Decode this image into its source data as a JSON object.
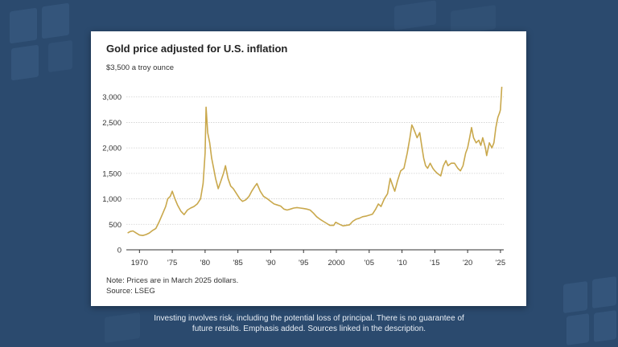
{
  "caption": {
    "line1": "Investing involves risk, including the potential loss of principal. There is no guarantee of",
    "line2": "future results. Emphasis added. Sources linked in the description."
  },
  "colors": {
    "line": "#c9a84c",
    "grid": "#cfcfcf",
    "background": "#2b4a6e"
  },
  "chart_data": {
    "type": "line",
    "title": "Gold price adjusted for U.S. inflation",
    "ylabel": "$3,500 a troy ounce",
    "xlabel": "",
    "note": "Note: Prices are in March 2025 dollars.",
    "source": "Source: LSEG",
    "ylim": [
      0,
      3500
    ],
    "xlim": [
      1968,
      2025.5
    ],
    "yticks": [
      {
        "value": 500,
        "label": "500"
      },
      {
        "value": 1000,
        "label": "1,000"
      },
      {
        "value": 1500,
        "label": "1,500"
      },
      {
        "value": 2000,
        "label": "2,000"
      },
      {
        "value": 2500,
        "label": "2,500"
      },
      {
        "value": 3000,
        "label": "3,000"
      }
    ],
    "ybase_label": "0",
    "xticks": [
      {
        "value": 1970,
        "label": "1970"
      },
      {
        "value": 1975,
        "label": "'75"
      },
      {
        "value": 1980,
        "label": "'80"
      },
      {
        "value": 1985,
        "label": "'85"
      },
      {
        "value": 1990,
        "label": "'90"
      },
      {
        "value": 1995,
        "label": "'95"
      },
      {
        "value": 2000,
        "label": "2000"
      },
      {
        "value": 2005,
        "label": "'05"
      },
      {
        "value": 2010,
        "label": "'10"
      },
      {
        "value": 2015,
        "label": "'15"
      },
      {
        "value": 2020,
        "label": "'20"
      },
      {
        "value": 2025,
        "label": "'25"
      }
    ],
    "series": [
      {
        "name": "Gold price adjusted for U.S. inflation",
        "x": [
          1968.2,
          1968.6,
          1969.0,
          1969.5,
          1970.0,
          1970.5,
          1971.0,
          1971.5,
          1972.0,
          1972.5,
          1973.0,
          1973.5,
          1974.0,
          1974.3,
          1974.7,
          1975.0,
          1975.4,
          1975.8,
          1976.3,
          1976.8,
          1977.3,
          1977.8,
          1978.3,
          1978.8,
          1979.3,
          1979.7,
          1980.0,
          1980.15,
          1980.4,
          1980.7,
          1981.0,
          1981.3,
          1981.6,
          1982.0,
          1982.4,
          1982.8,
          1983.1,
          1983.5,
          1983.9,
          1984.3,
          1984.8,
          1985.3,
          1985.7,
          1986.2,
          1986.7,
          1987.1,
          1987.6,
          1987.9,
          1988.4,
          1988.9,
          1989.5,
          1990.0,
          1990.5,
          1991.0,
          1991.5,
          1992.0,
          1992.5,
          1993.0,
          1993.5,
          1994.0,
          1994.5,
          1995.0,
          1995.5,
          1996.0,
          1996.5,
          1997.0,
          1997.5,
          1998.0,
          1998.5,
          1999.0,
          1999.6,
          1999.9,
          2000.5,
          2001.0,
          2001.5,
          2002.0,
          2002.5,
          2003.0,
          2003.5,
          2004.0,
          2004.5,
          2005.0,
          2005.5,
          2006.0,
          2006.4,
          2006.8,
          2007.3,
          2007.8,
          2008.2,
          2008.6,
          2008.9,
          2009.3,
          2009.8,
          2010.3,
          2010.8,
          2011.2,
          2011.5,
          2011.7,
          2012.0,
          2012.3,
          2012.7,
          2013.0,
          2013.3,
          2013.6,
          2013.9,
          2014.3,
          2014.7,
          2015.0,
          2015.4,
          2015.9,
          2016.3,
          2016.7,
          2017.0,
          2017.5,
          2018.0,
          2018.5,
          2018.9,
          2019.3,
          2019.7,
          2020.0,
          2020.3,
          2020.6,
          2020.9,
          2021.3,
          2021.7,
          2022.0,
          2022.3,
          2022.7,
          2022.9,
          2023.3,
          2023.7,
          2024.0,
          2024.3,
          2024.6,
          2024.9,
          2025.0,
          2025.2
        ],
        "y": [
          330,
          360,
          370,
          330,
          290,
          280,
          300,
          330,
          380,
          420,
          550,
          700,
          850,
          1000,
          1050,
          1150,
          1000,
          880,
          760,
          690,
          780,
          820,
          850,
          900,
          1000,
          1300,
          1900,
          2800,
          2300,
          2100,
          1800,
          1600,
          1400,
          1200,
          1350,
          1500,
          1650,
          1400,
          1250,
          1200,
          1100,
          1000,
          950,
          980,
          1050,
          1150,
          1250,
          1300,
          1150,
          1050,
          1000,
          950,
          900,
          880,
          860,
          800,
          780,
          800,
          820,
          830,
          820,
          810,
          800,
          780,
          720,
          650,
          600,
          560,
          520,
          480,
          480,
          540,
          500,
          470,
          480,
          490,
          560,
          600,
          620,
          650,
          660,
          680,
          700,
          800,
          900,
          850,
          1000,
          1100,
          1400,
          1250,
          1150,
          1350,
          1550,
          1600,
          1900,
          2200,
          2450,
          2400,
          2300,
          2200,
          2300,
          2050,
          1800,
          1650,
          1600,
          1700,
          1600,
          1550,
          1500,
          1450,
          1650,
          1750,
          1650,
          1700,
          1700,
          1600,
          1550,
          1650,
          1900,
          2000,
          2200,
          2400,
          2200,
          2100,
          2150,
          2050,
          2200,
          2000,
          1850,
          2100,
          2000,
          2100,
          2400,
          2600,
          2700,
          2750,
          3200
        ]
      }
    ]
  }
}
